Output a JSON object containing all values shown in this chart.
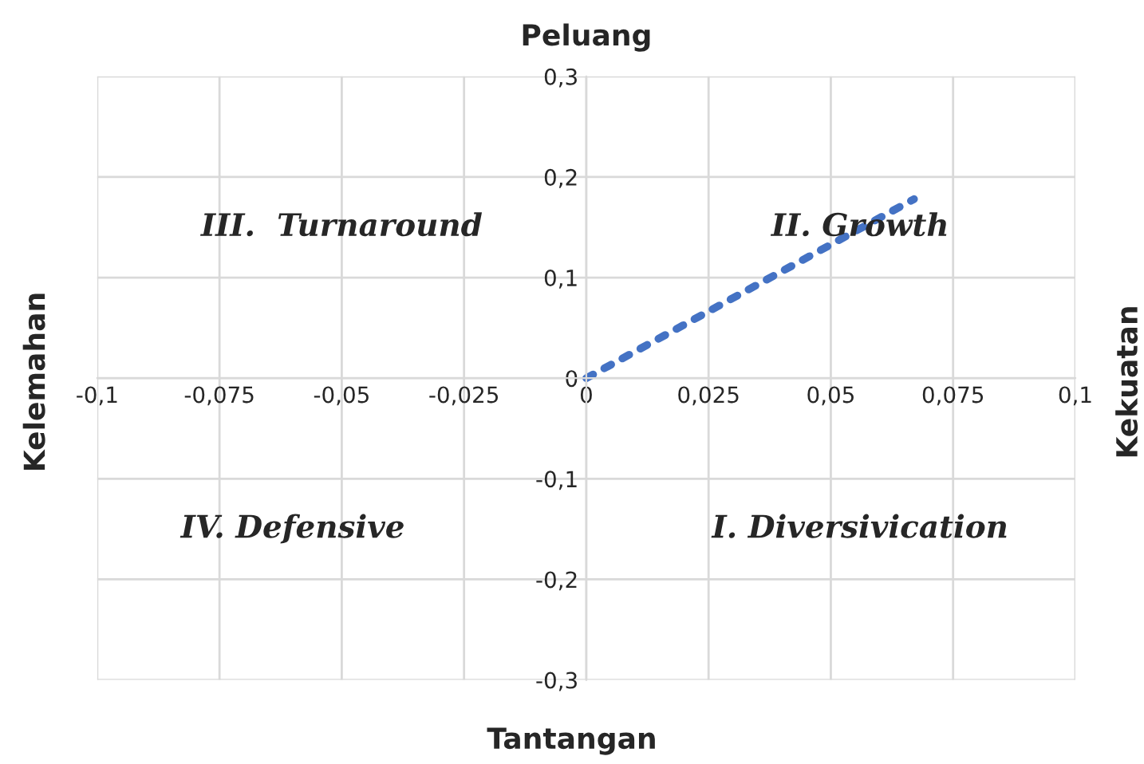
{
  "chart_data": {
    "type": "line",
    "title": "Peluang",
    "xlabel": "Tantangan",
    "ylabel": "Kelemahan",
    "y2label": "Kekuatan",
    "x": [
      0,
      0.067
    ],
    "series": [
      {
        "color": "#4472c4",
        "values": [
          0,
          0.178
        ]
      }
    ],
    "line_style": "dotted",
    "grid": true,
    "xlim": [
      -0.1,
      0.1
    ],
    "xticks": [
      {
        "value": -0.1,
        "label": "-0,1"
      },
      {
        "value": -0.075,
        "label": "-0,075"
      },
      {
        "value": -0.05,
        "label": "-0,05"
      },
      {
        "value": -0.025,
        "label": "-0,025"
      },
      0,
      {
        "value": 0.025,
        "label": "0,025"
      },
      {
        "value": 0.05,
        "label": "0,05"
      },
      {
        "value": 0.075,
        "label": "0,075"
      },
      {
        "value": 0.1,
        "label": "0,1"
      }
    ],
    "ylim": [
      -0.3,
      0.3
    ],
    "yticks": [
      {
        "value": -0.3,
        "label": "-0,3"
      },
      {
        "value": -0.2,
        "label": "-0,2"
      },
      {
        "value": -0.1,
        "label": "-0,1"
      },
      0,
      {
        "value": 0.1,
        "label": "0,1"
      },
      {
        "value": 0.2,
        "label": "0,2"
      },
      {
        "value": 0.3,
        "label": "0,3"
      }
    ],
    "annotations": [
      "III.  Turnaround",
      "II. Growth",
      "IV. Defensive",
      "I. Diversivication"
    ]
  }
}
